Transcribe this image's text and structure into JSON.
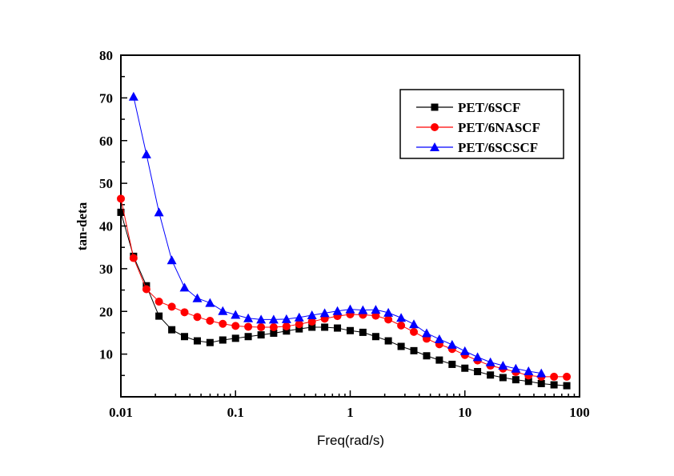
{
  "chart_data": {
    "type": "line",
    "title": "",
    "xlabel": "Freq(rad/s)",
    "ylabel": "tan-deta",
    "xscale": "log",
    "xlim": [
      0.01,
      100
    ],
    "ylim": [
      0,
      80
    ],
    "x_ticks": [
      0.01,
      0.1,
      1,
      10,
      100
    ],
    "x_tick_labels": [
      "0.01",
      "0.1",
      "1",
      "10",
      "100"
    ],
    "y_ticks": [
      10,
      20,
      30,
      40,
      50,
      60,
      70,
      80
    ],
    "y_tick_labels": [
      "10",
      "20",
      "30",
      "40",
      "50",
      "60",
      "70",
      "80"
    ],
    "grid": false,
    "legend_position": "top-right",
    "x": [
      0.01,
      0.0129,
      0.0167,
      0.0215,
      0.0278,
      0.0359,
      0.0464,
      0.0599,
      0.0774,
      0.1,
      0.129,
      0.167,
      0.215,
      0.278,
      0.359,
      0.464,
      0.599,
      0.774,
      1.0,
      1.29,
      1.67,
      2.15,
      2.78,
      3.59,
      4.64,
      5.99,
      7.74,
      10.0,
      12.9,
      16.7,
      21.5,
      27.8,
      35.9,
      46.4,
      59.9,
      77.4
    ],
    "series": [
      {
        "name": "PET/6SCF",
        "color": "#000000",
        "marker": "square",
        "x_start_index": 0,
        "values": [
          43.2,
          32.9,
          26.0,
          18.9,
          15.7,
          14.1,
          13.1,
          12.7,
          13.3,
          13.7,
          14.1,
          14.5,
          14.9,
          15.4,
          15.9,
          16.3,
          16.3,
          16.1,
          15.5,
          15.1,
          14.1,
          13.1,
          11.8,
          10.8,
          9.6,
          8.6,
          7.6,
          6.7,
          5.9,
          5.1,
          4.5,
          4.0,
          3.6,
          3.1,
          2.8,
          2.6
        ]
      },
      {
        "name": "PET/6NASCF",
        "color": "#ff0000",
        "marker": "circle",
        "x_start_index": 0,
        "values": [
          46.4,
          32.5,
          25.2,
          22.3,
          21.1,
          19.8,
          18.7,
          17.8,
          17.1,
          16.6,
          16.4,
          16.3,
          16.3,
          16.5,
          17.0,
          17.6,
          18.3,
          18.9,
          19.3,
          19.2,
          19.0,
          18.1,
          16.7,
          15.2,
          13.6,
          12.3,
          11.2,
          9.8,
          8.5,
          7.3,
          6.6,
          5.8,
          5.0,
          4.7,
          4.7,
          4.7
        ]
      },
      {
        "name": "PET/6SCSCF",
        "color": "#0000ff",
        "marker": "triangle",
        "x_start_index": 1,
        "values": [
          70.3,
          56.8,
          43.2,
          32.0,
          25.6,
          23.1,
          22.0,
          20.1,
          19.2,
          18.4,
          18.1,
          18.1,
          18.2,
          18.6,
          19.1,
          19.6,
          20.1,
          20.5,
          20.3,
          20.4,
          19.7,
          18.5,
          17.0,
          14.9,
          13.5,
          12.2,
          10.7,
          9.3,
          8.1,
          7.3,
          6.6,
          6.0,
          5.5
        ]
      }
    ]
  }
}
